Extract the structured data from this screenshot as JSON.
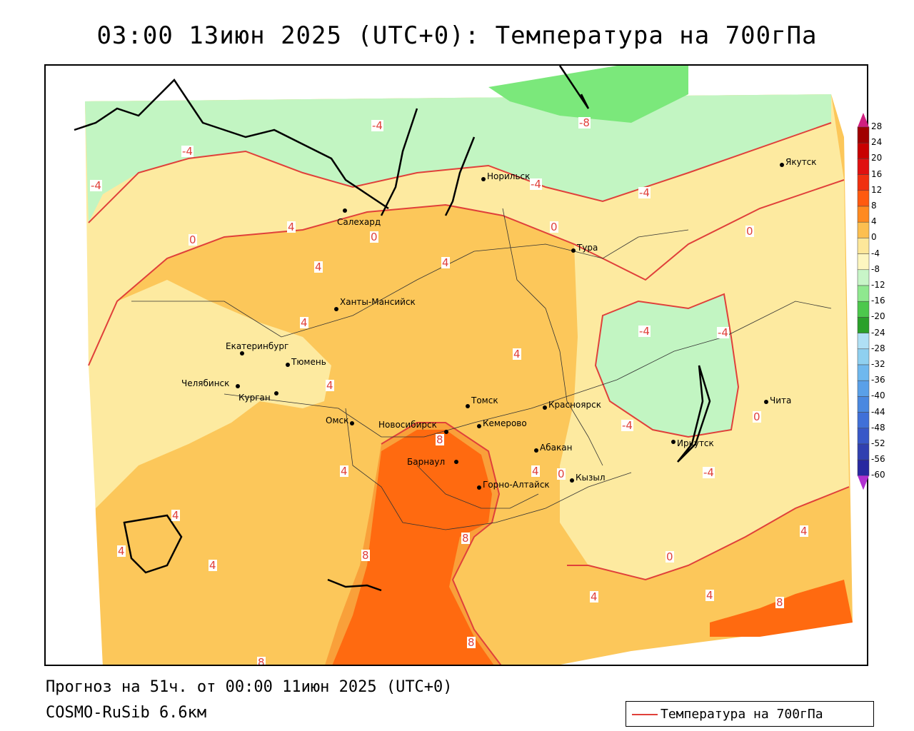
{
  "title": "03:00 13июн 2025 (UTC+0): Температура на 700гПа",
  "forecast": "Прогноз на 51ч. от 00:00 11июн 2025 (UTC+0)",
  "model": "COSMO-RuSib 6.6км",
  "legend": {
    "label": "Температура на 700гПа",
    "line_color": "#e0403a"
  },
  "colors": {
    "cold_m8": "#7be87b",
    "cold_m4": "#c2f5c2",
    "band_0_4": "#fdeaa0",
    "band_4_8": "#fcc75a",
    "band_8_12": "#f9a03a",
    "band_12_16": "#ff6a10",
    "contour": "#e0403a"
  },
  "colorbar": {
    "ticks": [
      "28",
      "24",
      "20",
      "16",
      "12",
      "8",
      "4",
      "0",
      "-4",
      "-8",
      "-12",
      "-16",
      "-20",
      "-24",
      "-28",
      "-32",
      "-36",
      "-40",
      "-44",
      "-48",
      "-52",
      "-56",
      "-60"
    ],
    "colors": [
      "#a00000",
      "#c80000",
      "#e01010",
      "#f03010",
      "#ff5a10",
      "#ff8a20",
      "#fcbf50",
      "#fde79a",
      "#fdf6c0",
      "#c8f5c8",
      "#8fe88f",
      "#4cc84c",
      "#2aa02a",
      "#b0e0f5",
      "#8fd0f0",
      "#6fb8ee",
      "#5aa0e8",
      "#4a88e0",
      "#4070d8",
      "#3858c8",
      "#3040b0",
      "#2828a0",
      "#201890"
    ]
  },
  "cities": [
    {
      "name": "Якутск"
    },
    {
      "name": "Норильск"
    },
    {
      "name": "Салехард"
    },
    {
      "name": "Тура"
    },
    {
      "name": "Ханты-Мансийск"
    },
    {
      "name": "Екатеринбург"
    },
    {
      "name": "Тюмень"
    },
    {
      "name": "Челябинск"
    },
    {
      "name": "Курган"
    },
    {
      "name": "Омск"
    },
    {
      "name": "Томск"
    },
    {
      "name": "Новосибирск"
    },
    {
      "name": "Кемерово"
    },
    {
      "name": "Красноярск"
    },
    {
      "name": "Абакан"
    },
    {
      "name": "Барнаул"
    },
    {
      "name": "Горно-Алтайск"
    },
    {
      "name": "Кызыл"
    },
    {
      "name": "Иркутск"
    },
    {
      "name": "Чита"
    }
  ],
  "isolines": [
    "-4",
    "-8",
    "-4",
    "-4",
    "-4",
    "4",
    "-4",
    "0",
    "0",
    "0",
    "4",
    "4",
    "4",
    "4",
    "4",
    "-4",
    "-4",
    "4",
    "0",
    "8",
    "4",
    "4",
    "4",
    "0",
    "-4",
    "-4",
    "4",
    "0",
    "0",
    "8",
    "8",
    "4",
    "4",
    "8",
    "8",
    "4",
    "4",
    "8"
  ]
}
